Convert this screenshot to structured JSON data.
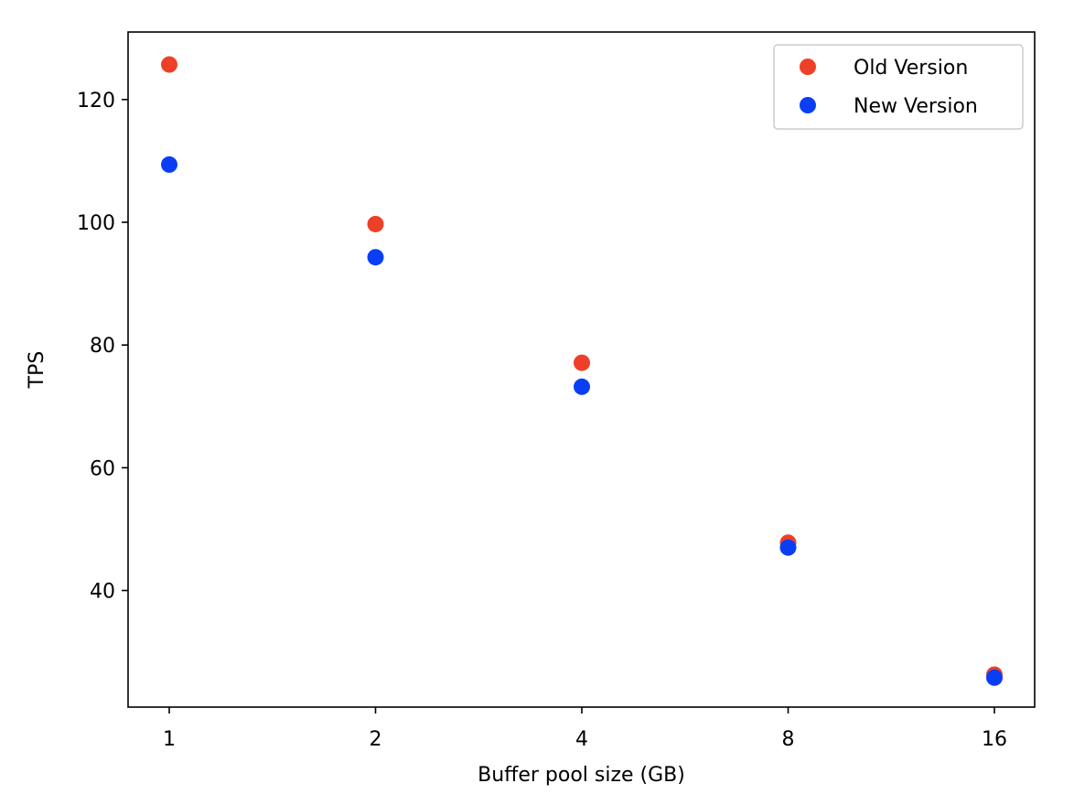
{
  "chart_data": {
    "type": "scatter",
    "title": "",
    "xlabel": "Buffer pool size (GB)",
    "ylabel": "TPS",
    "x_categories": [
      "1",
      "2",
      "4",
      "8",
      "16"
    ],
    "y_ticks": [
      40,
      60,
      80,
      100,
      120
    ],
    "ylim": [
      21,
      131
    ],
    "grid": false,
    "legend_position": "top-right",
    "series": [
      {
        "name": "Old Version",
        "color": "#ee4028",
        "values": [
          125.7,
          99.7,
          77.1,
          47.8,
          26.3
        ]
      },
      {
        "name": "New Version",
        "color": "#0a3ef5",
        "values": [
          109.4,
          94.3,
          73.2,
          47.0,
          25.8
        ]
      }
    ]
  }
}
